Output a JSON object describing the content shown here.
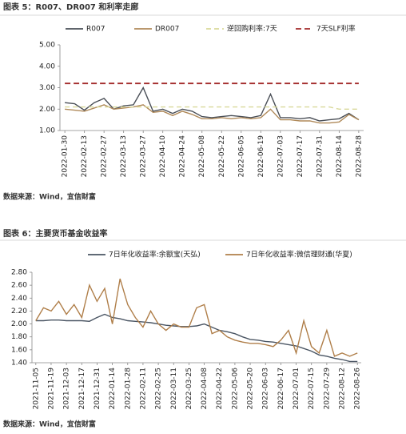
{
  "chart_data": [
    {
      "type": "line",
      "title": "图表 5：R007、DR007 和利率走廊",
      "source": "数据来源：Wind，宜信财富",
      "categories": [
        "2022-01-30",
        null,
        "2022-02-13",
        null,
        "2022-02-27",
        null,
        "2022-03-13",
        null,
        "2022-03-27",
        null,
        "2022-04-10",
        null,
        "2022-04-24",
        null,
        "2022-05-08",
        null,
        "2022-05-22",
        null,
        "2022-06-05",
        null,
        "2022-06-19",
        null,
        "2022-07-03",
        null,
        "2022-07-17",
        null,
        "2022-07-31",
        null,
        "2022-08-14",
        null,
        "2022-08-28"
      ],
      "series": [
        {
          "name": "R007",
          "color": "#4a4f57",
          "style": "solid",
          "values": [
            2.3,
            2.25,
            1.95,
            2.3,
            2.5,
            2.0,
            2.15,
            2.2,
            3.0,
            1.9,
            2.0,
            1.8,
            2.0,
            1.9,
            1.65,
            1.6,
            1.65,
            1.7,
            1.65,
            1.6,
            1.7,
            2.7,
            1.6,
            1.6,
            1.55,
            1.6,
            1.45,
            1.5,
            1.55,
            1.8,
            1.5
          ]
        },
        {
          "name": "DR007",
          "color": "#b08a5a",
          "style": "solid",
          "values": [
            2.0,
            1.95,
            1.9,
            2.05,
            2.2,
            2.0,
            2.05,
            2.1,
            2.2,
            1.85,
            1.9,
            1.7,
            1.9,
            1.75,
            1.55,
            1.55,
            1.6,
            1.55,
            1.6,
            1.55,
            1.6,
            2.0,
            1.5,
            1.5,
            1.45,
            1.45,
            1.35,
            1.35,
            1.4,
            1.75,
            1.5
          ]
        },
        {
          "name": "逆回购利率:7天",
          "color": "#d9d99a",
          "style": "dashed",
          "values": [
            2.1,
            2.1,
            2.1,
            2.1,
            2.1,
            2.1,
            2.1,
            2.1,
            2.1,
            2.1,
            2.1,
            2.1,
            2.1,
            2.1,
            2.1,
            2.1,
            2.1,
            2.1,
            2.1,
            2.1,
            2.1,
            2.1,
            2.1,
            2.1,
            2.1,
            2.1,
            2.1,
            2.1,
            2.0,
            2.0,
            2.0
          ]
        },
        {
          "name": "7天SLF利率",
          "color": "#a32a2a",
          "style": "dashed",
          "values": [
            3.2,
            3.2,
            3.2,
            3.2,
            3.2,
            3.2,
            3.2,
            3.2,
            3.2,
            3.2,
            3.2,
            3.2,
            3.2,
            3.2,
            3.2,
            3.2,
            3.2,
            3.2,
            3.2,
            3.2,
            3.2,
            3.2,
            3.2,
            3.2,
            3.2,
            3.2,
            3.2,
            3.2,
            3.2,
            3.2,
            3.2
          ]
        }
      ],
      "ylim": [
        1,
        5
      ],
      "yticks": [
        {
          "value": 1,
          "label": "1.00"
        },
        {
          "value": 2,
          "label": "2.00"
        },
        {
          "value": 3,
          "label": "3.00"
        },
        {
          "value": 4,
          "label": "4.00"
        },
        {
          "value": 5,
          "label": "5.00"
        }
      ],
      "grid": false
    },
    {
      "type": "line",
      "title": "图表 6：主要货币基金收益率",
      "source": "数据来源：Wind，宜信财富",
      "categories": [
        "2021-11-05",
        null,
        "2021-11-19",
        null,
        "2021-12-03",
        null,
        "2021-12-17",
        null,
        "2021-12-31",
        null,
        "2022-01-14",
        null,
        "2022-01-28",
        null,
        "2022-02-11",
        null,
        "2022-02-25",
        null,
        "2022-03-11",
        null,
        "2022-03-25",
        null,
        "2022-04-08",
        null,
        "2022-04-22",
        null,
        "2022-05-06",
        null,
        "2022-05-20",
        null,
        "2022-06-03",
        null,
        "2022-06-17",
        null,
        "2022-07-01",
        null,
        "2022-07-15",
        null,
        "2022-07-29",
        null,
        "2022-08-12",
        null,
        "2022-08-26"
      ],
      "series": [
        {
          "name": "7日年化收益率:余额宝(天弘)",
          "color": "#4a5563",
          "style": "solid",
          "values": [
            2.05,
            2.05,
            2.06,
            2.06,
            2.05,
            2.05,
            2.05,
            2.04,
            2.1,
            2.15,
            2.1,
            2.08,
            2.05,
            2.04,
            2.03,
            2.02,
            2.0,
            1.98,
            1.97,
            1.96,
            1.96,
            1.97,
            2.0,
            1.95,
            1.9,
            1.88,
            1.85,
            1.8,
            1.76,
            1.75,
            1.73,
            1.72,
            1.7,
            1.68,
            1.66,
            1.62,
            1.58,
            1.52,
            1.5,
            1.47,
            1.45,
            1.42,
            1.42
          ]
        },
        {
          "name": "7日年化收益率:微信理财通(华夏)",
          "color": "#b07f4a",
          "style": "solid",
          "values": [
            2.05,
            2.25,
            2.2,
            2.35,
            2.15,
            2.3,
            2.1,
            2.6,
            2.35,
            2.55,
            2.0,
            2.7,
            2.3,
            2.1,
            1.95,
            2.2,
            2.0,
            1.9,
            2.0,
            1.95,
            1.95,
            2.25,
            2.3,
            1.85,
            1.9,
            1.8,
            1.75,
            1.72,
            1.7,
            1.7,
            1.68,
            1.65,
            1.75,
            1.9,
            1.55,
            2.05,
            1.65,
            1.55,
            1.9,
            1.5,
            1.55,
            1.5,
            1.55
          ]
        }
      ],
      "ylim": [
        1.4,
        2.8
      ],
      "yticks": [
        {
          "value": 1.4,
          "label": "1.40"
        },
        {
          "value": 1.6,
          "label": "1.60"
        },
        {
          "value": 1.8,
          "label": "1.80"
        },
        {
          "value": 2.0,
          "label": "2.00"
        },
        {
          "value": 2.2,
          "label": "2.20"
        },
        {
          "value": 2.4,
          "label": "2.40"
        },
        {
          "value": 2.6,
          "label": "2.60"
        },
        {
          "value": 2.8,
          "label": "2.80"
        }
      ],
      "grid": false
    }
  ]
}
